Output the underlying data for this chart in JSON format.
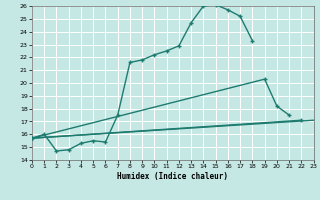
{
  "background_color": "#c5e8e4",
  "grid_color": "#ffffff",
  "line_color": "#1e7b70",
  "xlabel": "Humidex (Indice chaleur)",
  "xlim": [
    0,
    23
  ],
  "ylim": [
    14,
    26
  ],
  "xticks": [
    0,
    1,
    2,
    3,
    4,
    5,
    6,
    7,
    8,
    9,
    10,
    11,
    12,
    13,
    14,
    15,
    16,
    17,
    18,
    19,
    20,
    21,
    22,
    23
  ],
  "yticks": [
    14,
    15,
    16,
    17,
    18,
    19,
    20,
    21,
    22,
    23,
    24,
    25,
    26
  ],
  "line1_x": [
    0,
    1,
    2,
    3,
    4,
    5,
    6,
    7,
    8,
    9,
    10,
    11,
    12,
    13,
    14,
    15,
    16,
    17,
    18
  ],
  "line1_y": [
    15.7,
    16.0,
    14.7,
    14.8,
    15.3,
    15.5,
    15.4,
    17.5,
    21.6,
    21.8,
    22.2,
    22.5,
    22.9,
    24.7,
    26.0,
    26.1,
    25.7,
    25.2,
    23.3
  ],
  "line2_x": [
    0,
    19,
    20,
    21
  ],
  "line2_y": [
    15.7,
    20.3,
    18.2,
    17.5
  ],
  "line3_x": [
    0,
    22
  ],
  "line3_y": [
    15.7,
    17.1
  ],
  "line4_x": [
    0,
    23
  ],
  "line4_y": [
    15.7,
    17.1
  ],
  "figsize": [
    3.2,
    2.0
  ],
  "dpi": 100
}
